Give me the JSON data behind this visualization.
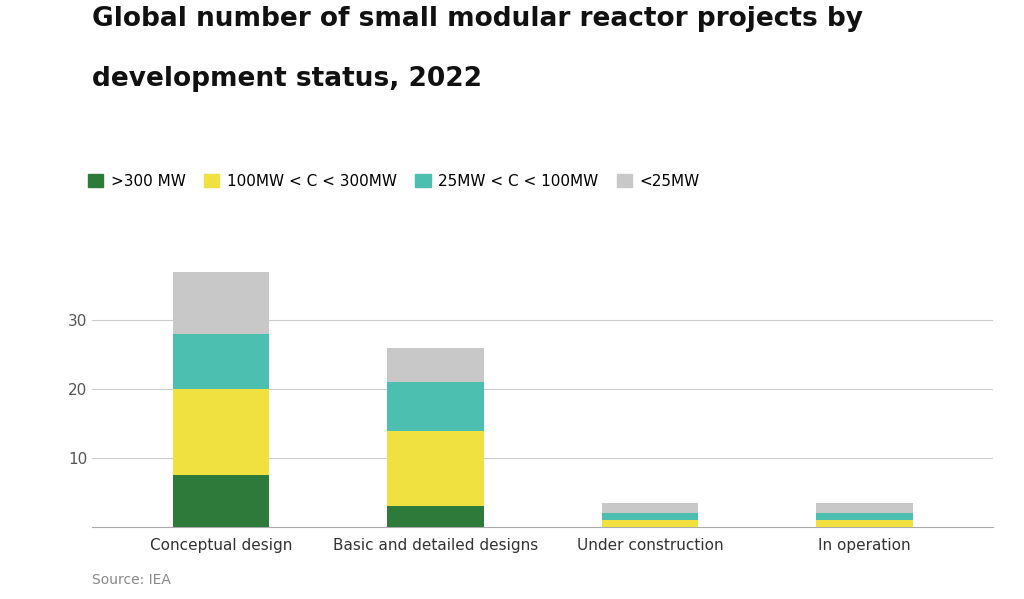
{
  "title_line1": "Global number of small modular reactor projects by",
  "title_line2": "development status, 2022",
  "categories": [
    "Conceptual design",
    "Basic and detailed designs",
    "Under construction",
    "In operation"
  ],
  "series": {
    ">300 MW": [
      7.5,
      3,
      0,
      0
    ],
    "100MW < C < 300MW": [
      12.5,
      11,
      1,
      1
    ],
    "25MW < C < 100MW": [
      8,
      7,
      1,
      1
    ],
    "<25MW": [
      9,
      5,
      1.5,
      1.5
    ]
  },
  "colors": {
    ">300 MW": "#2d7a3a",
    "100MW < C < 300MW": "#f0e040",
    "25MW < C < 100MW": "#4dbfb0",
    "<25MW": "#c8c8c8"
  },
  "legend_labels": [
    ">300 MW",
    "100MW < C < 300MW",
    "25MW < C < 100MW",
    "<25MW"
  ],
  "source": "Source: IEA",
  "ylim": [
    0,
    40
  ],
  "yticks": [
    10,
    20,
    30
  ],
  "background_color": "#ffffff",
  "title_fontsize": 19,
  "tick_fontsize": 11,
  "legend_fontsize": 11,
  "source_fontsize": 10,
  "bar_width": 0.45
}
